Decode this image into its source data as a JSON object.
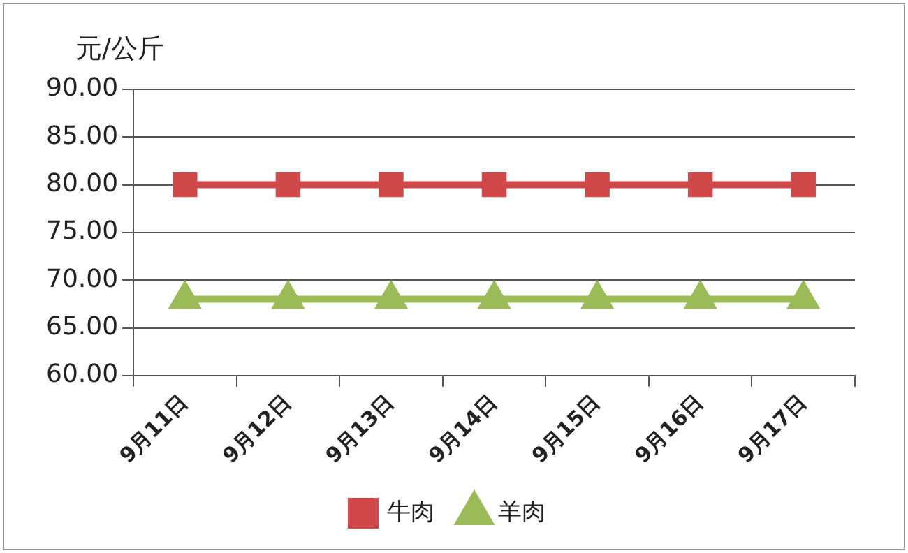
{
  "chart_data": {
    "type": "line",
    "ylabel": "元/公斤",
    "categories": [
      "9月11日",
      "9月12日",
      "9月13日",
      "9月14日",
      "9月15日",
      "9月16日",
      "9月17日"
    ],
    "series": [
      {
        "name": "牛肉",
        "color": "#d04848",
        "marker": "square",
        "values": [
          80,
          80,
          80,
          80,
          80,
          80,
          80
        ]
      },
      {
        "name": "羊肉",
        "color": "#9bbb59",
        "marker": "triangle",
        "values": [
          68,
          68,
          68,
          68,
          68,
          68,
          68
        ]
      }
    ],
    "ylim": [
      60,
      90
    ],
    "yticks": [
      {
        "value": 60,
        "label": "60.00"
      },
      {
        "value": 65,
        "label": "65.00"
      },
      {
        "value": 70,
        "label": "70.00"
      },
      {
        "value": 75,
        "label": "75.00"
      },
      {
        "value": 80,
        "label": "80.00"
      },
      {
        "value": 85,
        "label": "85.00"
      },
      {
        "value": 90,
        "label": "90.00"
      }
    ],
    "grid": "y",
    "legend": "bottom"
  }
}
